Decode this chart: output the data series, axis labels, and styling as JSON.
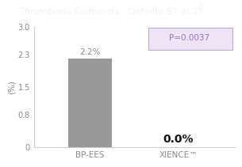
{
  "title": "Thrombosis Endpoints : Definite ST at 2Y",
  "title_superscript": "2)",
  "title_bg_color": "#b09fc0",
  "title_text_color": "#f5f0f8",
  "ylabel": "(%)",
  "categories": [
    "BP-EES",
    "XIENCE™"
  ],
  "values": [
    2.2,
    0.0
  ],
  "bar_color": "#999999",
  "bar_label_0": "2.2%",
  "bar_label_1": "0.0%",
  "bar_label_0_color": "#888888",
  "bar_label_1_color": "#111111",
  "bar_label_0_fontsize": 7.5,
  "bar_label_1_fontsize": 10,
  "bar_label_1_fontweight": "bold",
  "pvalue_text": "P=0.0037",
  "pvalue_box_facecolor": "#ede5f5",
  "pvalue_box_edgecolor": "#c0a8d8",
  "pvalue_text_color": "#9b6fbe",
  "ylim": [
    0,
    3.0
  ],
  "yticks": [
    0,
    0.8,
    1.5,
    2.3,
    3.0
  ],
  "ytick_labels": [
    "0",
    "0.8",
    "1.5",
    "2.3",
    "3.0"
  ],
  "background_color": "#ffffff",
  "spine_color": "#cccccc",
  "tick_color": "#888888",
  "fig_width": 3.05,
  "fig_height": 2.11,
  "dpi": 100
}
